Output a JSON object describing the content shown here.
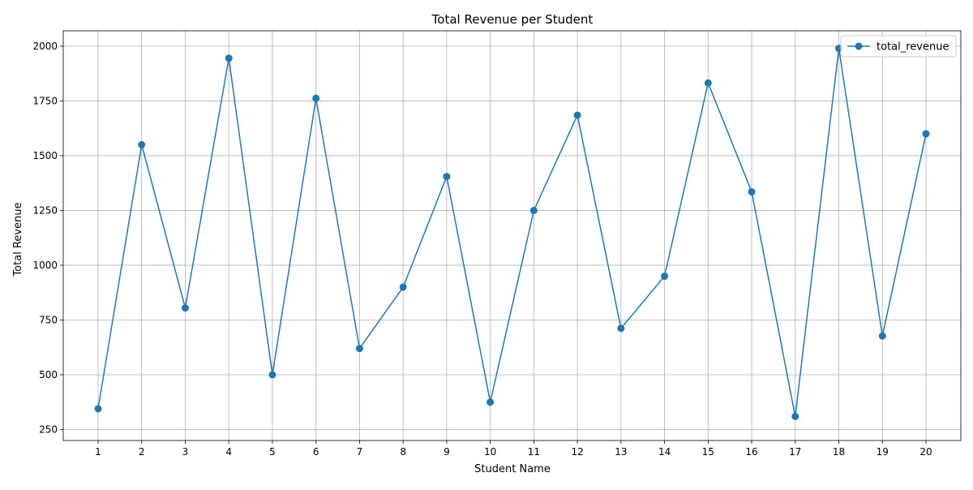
{
  "chart_data": {
    "type": "line",
    "title": "Total Revenue per Student",
    "xlabel": "Student Name",
    "ylabel": "Total Revenue",
    "x": [
      1,
      2,
      3,
      4,
      5,
      6,
      7,
      8,
      9,
      10,
      11,
      12,
      13,
      14,
      15,
      16,
      17,
      18,
      19,
      20
    ],
    "series": [
      {
        "name": "total_revenue",
        "color": "#1f77b4",
        "marker": "circle",
        "values": [
          345,
          1550,
          805,
          1945,
          500,
          1762,
          620,
          900,
          1405,
          375,
          1250,
          1685,
          712,
          950,
          1832,
          1335,
          310,
          1990,
          677,
          1600
        ]
      }
    ],
    "yticks": [
      250,
      500,
      750,
      1000,
      1250,
      1500,
      1750,
      2000
    ],
    "ylim": [
      200,
      2070
    ],
    "xlim": [
      0.2,
      20.8
    ],
    "grid": true,
    "legend_position": "top-right"
  }
}
